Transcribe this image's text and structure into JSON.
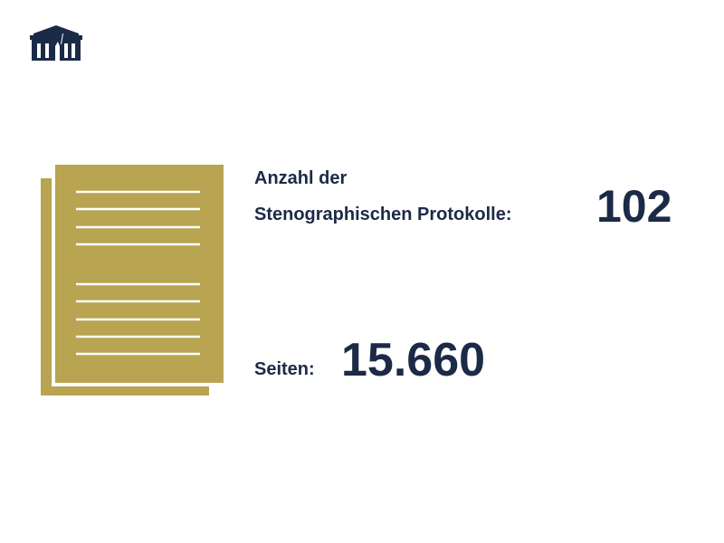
{
  "logo": {
    "name": "parliament-logo-icon",
    "color": "#1b2a47"
  },
  "document_icon": {
    "name": "document-stack-icon",
    "color": "#b8a451"
  },
  "stats": {
    "protocols_label_line1": "Anzahl der",
    "protocols_label_line2": "Stenographischen Protokolle:",
    "protocols_value": "102",
    "pages_label": "Seiten:",
    "pages_value": "15.660"
  }
}
